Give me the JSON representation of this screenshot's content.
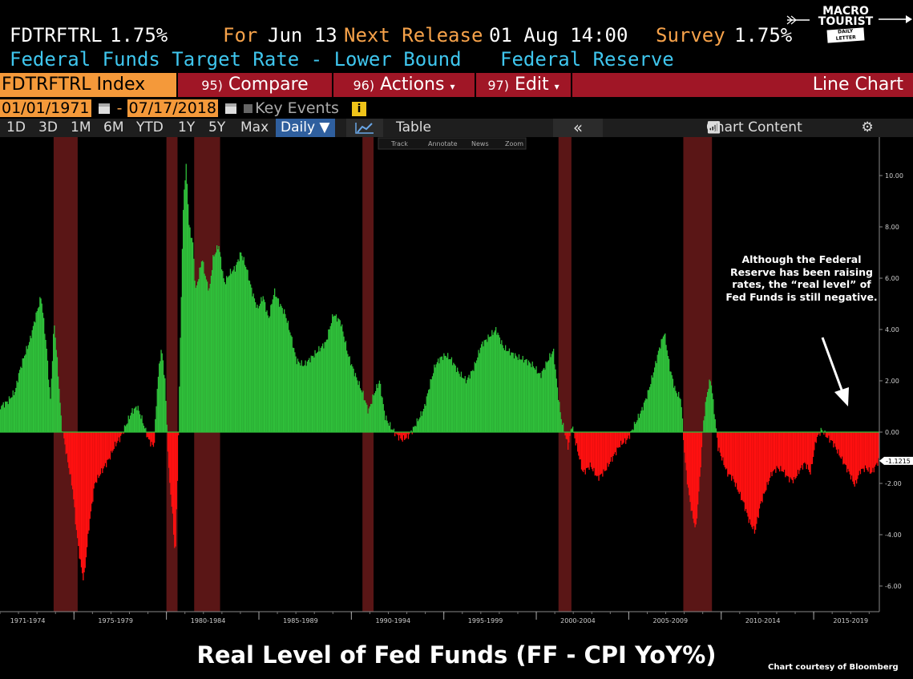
{
  "header": {
    "ticker": "FDTRFTRL",
    "value": "1.75%",
    "for_label": "For",
    "for_date": "Jun 13",
    "next_label": "Next Release",
    "next_date": "01 Aug 14:00",
    "survey_label": "Survey",
    "survey_value": "1.75%",
    "description": "Federal Funds Target Rate - Lower Bound",
    "source": "Federal Reserve"
  },
  "logo": {
    "line1": "MACRO",
    "line2": "TOURIST",
    "line3": "DAILY LETTER"
  },
  "toolbar": {
    "index_label": "FDTRFTRL Index",
    "compare_num": "95)",
    "compare_label": "Compare",
    "actions_num": "96)",
    "actions_label": "Actions",
    "edit_num": "97)",
    "edit_label": "Edit",
    "chart_type": "Line Chart"
  },
  "dates": {
    "start": "01/01/1971",
    "sep": "-",
    "end": "07/17/2018",
    "key_events": "Key Events",
    "info": "i"
  },
  "ranges": {
    "items": [
      "1D",
      "3D",
      "1M",
      "6M",
      "YTD",
      "1Y",
      "5Y",
      "Max"
    ],
    "daily": "Daily ▼",
    "table": "Table",
    "collapse": "«",
    "chart_content": "Chart Content"
  },
  "chart_tools": [
    "Track",
    "Annotate",
    "News",
    "Zoom"
  ],
  "annotation": "Although the Federal Reserve has been raising rates, the “real level” of Fed Funds is still negative.",
  "title": "Real Level of Fed Funds (FF - CPI YoY%)",
  "credit": "Chart courtesy of Bloomberg",
  "colors": {
    "positive": "#2fbf3a",
    "negative": "#ff1010",
    "recession": "#5a1616",
    "background": "#000000"
  },
  "chart_data": {
    "type": "area",
    "x_unit": "year",
    "xlim": [
      1971.0,
      2018.55
    ],
    "ylim": [
      -7.0,
      11.5
    ],
    "y_ticks": [
      "10.00",
      "8.00",
      "6.00",
      "4.00",
      "2.00",
      "0.00",
      "-2.00",
      "-4.00",
      "-6.00"
    ],
    "y_tick_values": [
      10,
      8,
      6,
      4,
      2,
      0,
      -2,
      -4,
      -6
    ],
    "x_period_labels": [
      "1971-1974",
      "1975-1979",
      "1980-1984",
      "1985-1989",
      "1990-1994",
      "1995-1999",
      "2000-2004",
      "2005-2009",
      "2010-2014",
      "2015-2019"
    ],
    "x_period_centers": [
      1972.5,
      1977.25,
      1982.25,
      1987.25,
      1992.25,
      1997.25,
      2002.25,
      2007.25,
      2012.25,
      2017.0
    ],
    "last_value_label": "-1.1215",
    "last_value": -1.1215,
    "recessions": [
      [
        1973.9,
        1975.2
      ],
      [
        1980.0,
        1980.6
      ],
      [
        1981.5,
        1982.9
      ],
      [
        1990.6,
        1991.2
      ],
      [
        2001.2,
        2001.9
      ],
      [
        2007.95,
        2009.5
      ]
    ],
    "series": [
      {
        "x": [
          1971.0,
          1971.4,
          1971.8,
          1972.0,
          1972.3,
          1972.6,
          1972.9,
          1973.2,
          1973.5,
          1973.7,
          1973.9,
          1974.1,
          1974.3,
          1974.6,
          1974.9,
          1975.1,
          1975.3,
          1975.5,
          1975.8,
          1976.1,
          1976.5,
          1976.9,
          1977.2,
          1977.5,
          1977.8,
          1978.1,
          1978.4,
          1978.7,
          1979.0,
          1979.3,
          1979.5,
          1979.7,
          1979.9,
          1980.1,
          1980.3,
          1980.45,
          1980.6,
          1980.75,
          1980.9,
          1981.05,
          1981.2,
          1981.4,
          1981.55,
          1981.7,
          1981.9,
          1982.1,
          1982.3,
          1982.5,
          1982.8,
          1983.1,
          1983.4,
          1983.7,
          1984.0,
          1984.3,
          1984.6,
          1984.9,
          1985.2,
          1985.5,
          1985.8,
          1986.1,
          1986.4,
          1986.7,
          1987.0,
          1987.4,
          1987.8,
          1988.2,
          1988.6,
          1989.0,
          1989.4,
          1989.8,
          1990.2,
          1990.6,
          1990.9,
          1991.2,
          1991.5,
          1991.8,
          1992.1,
          1992.4,
          1992.7,
          1993.0,
          1993.3,
          1993.6,
          1993.9,
          1994.2,
          1994.5,
          1994.8,
          1995.1,
          1995.4,
          1995.8,
          1996.2,
          1996.6,
          1997.0,
          1997.4,
          1997.8,
          1998.2,
          1998.6,
          1999.0,
          1999.4,
          1999.8,
          2000.2,
          2000.6,
          2000.9,
          2001.1,
          2001.3,
          2001.5,
          2001.7,
          2001.9,
          2002.1,
          2002.5,
          2002.9,
          2003.3,
          2003.7,
          2004.1,
          2004.5,
          2004.9,
          2005.3,
          2005.7,
          2006.0,
          2006.3,
          2006.6,
          2006.9,
          2007.2,
          2007.5,
          2007.8,
          2008.0,
          2008.2,
          2008.4,
          2008.6,
          2008.8,
          2009.0,
          2009.2,
          2009.4,
          2009.6,
          2009.8,
          2010.0,
          2010.3,
          2010.6,
          2010.9,
          2011.2,
          2011.5,
          2011.8,
          2012.1,
          2012.4,
          2012.7,
          2013.0,
          2013.3,
          2013.6,
          2013.9,
          2014.2,
          2014.5,
          2014.8,
          2015.1,
          2015.4,
          2015.7,
          2016.0,
          2016.3,
          2016.6,
          2016.9,
          2017.2,
          2017.5,
          2017.8,
          2018.1,
          2018.5
        ],
        "y": [
          1.0,
          1.2,
          1.6,
          2.3,
          3.0,
          3.6,
          4.5,
          5.3,
          3.2,
          1.2,
          4.3,
          2.5,
          0.3,
          -1.0,
          -2.2,
          -3.8,
          -5.0,
          -5.8,
          -3.6,
          -2.0,
          -1.5,
          -1.0,
          -0.5,
          -0.2,
          0.3,
          0.8,
          1.0,
          0.4,
          -0.3,
          -0.6,
          2.0,
          3.3,
          2.0,
          -1.5,
          -3.2,
          -4.9,
          -1.0,
          4.5,
          9.2,
          10.4,
          8.0,
          7.4,
          5.5,
          6.0,
          6.8,
          6.0,
          5.5,
          6.8,
          7.3,
          5.8,
          6.2,
          6.4,
          7.0,
          6.4,
          5.5,
          4.8,
          5.3,
          4.4,
          5.5,
          5.0,
          4.6,
          3.8,
          2.8,
          2.6,
          2.9,
          3.2,
          3.5,
          4.6,
          4.3,
          3.0,
          2.2,
          1.5,
          0.8,
          1.5,
          2.0,
          0.6,
          0.2,
          -0.1,
          -0.3,
          -0.2,
          0.1,
          0.5,
          0.9,
          1.8,
          2.6,
          2.9,
          3.0,
          2.8,
          2.3,
          2.0,
          2.5,
          3.4,
          3.7,
          4.0,
          3.3,
          3.1,
          2.9,
          2.8,
          2.6,
          2.2,
          2.8,
          3.2,
          1.8,
          0.6,
          0.0,
          -0.6,
          0.3,
          -0.4,
          -1.6,
          -1.3,
          -1.8,
          -1.5,
          -1.0,
          -0.5,
          -0.3,
          0.3,
          0.9,
          1.5,
          2.3,
          3.2,
          3.9,
          2.5,
          1.6,
          1.3,
          -1.0,
          -2.3,
          -3.2,
          -3.8,
          -2.0,
          0.3,
          1.5,
          2.1,
          0.8,
          -0.6,
          -1.0,
          -1.6,
          -1.8,
          -2.3,
          -2.8,
          -3.5,
          -3.9,
          -2.8,
          -2.2,
          -1.6,
          -1.4,
          -1.5,
          -1.8,
          -1.9,
          -1.5,
          -1.2,
          -1.6,
          -0.3,
          0.1,
          -0.2,
          -0.4,
          -0.8,
          -1.2,
          -1.6,
          -2.1,
          -1.5,
          -1.4,
          -1.6,
          -1.1
        ]
      }
    ]
  }
}
